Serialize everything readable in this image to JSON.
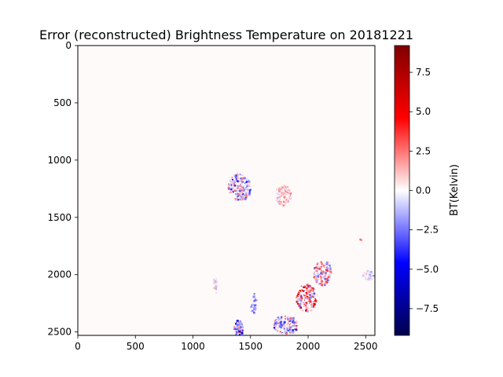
{
  "chart_data": {
    "type": "heatmap",
    "title": "Error (reconstructed) Brightness Temperature on 20181221",
    "xlabel": "",
    "ylabel": "",
    "xlim": [
      0,
      2580
    ],
    "ylim": [
      2530,
      0
    ],
    "x_ticks": [
      0,
      500,
      1000,
      1500,
      2000,
      2500
    ],
    "y_ticks": [
      0,
      500,
      1000,
      1500,
      2000,
      2500
    ],
    "colormap": "seismic",
    "colorbar": {
      "label": "BT(Kelvin)",
      "range": [
        -9.2,
        9.2
      ],
      "ticks": [
        -7.5,
        -5.0,
        -2.5,
        0.0,
        2.5,
        5.0,
        7.5
      ],
      "tick_labels": [
        "−7.5",
        "−5.0",
        "−2.5",
        "0.0",
        "2.5",
        "5.0",
        "7.5"
      ]
    },
    "background_value": 0.0,
    "error_patches": [
      {
        "cx": 1400,
        "cy": 1230,
        "rx": 100,
        "ry": 120,
        "count": 230,
        "vmin": -4.5,
        "vmax": 3.0
      },
      {
        "cx": 1780,
        "cy": 1300,
        "rx": 70,
        "ry": 90,
        "count": 120,
        "vmin": -1.0,
        "vmax": 2.5
      },
      {
        "cx": 2120,
        "cy": 1980,
        "rx": 80,
        "ry": 110,
        "count": 150,
        "vmin": -3.0,
        "vmax": 4.0
      },
      {
        "cx": 1980,
        "cy": 2200,
        "rx": 90,
        "ry": 120,
        "count": 170,
        "vmin": -3.5,
        "vmax": 6.0
      },
      {
        "cx": 1800,
        "cy": 2430,
        "rx": 110,
        "ry": 80,
        "count": 150,
        "vmin": -4.5,
        "vmax": 3.5
      },
      {
        "cx": 1390,
        "cy": 2460,
        "rx": 40,
        "ry": 70,
        "count": 90,
        "vmin": -6.0,
        "vmax": 3.0
      },
      {
        "cx": 1520,
        "cy": 2230,
        "rx": 25,
        "ry": 100,
        "count": 50,
        "vmin": -3.0,
        "vmax": 1.0
      },
      {
        "cx": 1190,
        "cy": 2090,
        "rx": 20,
        "ry": 70,
        "count": 35,
        "vmin": -2.0,
        "vmax": 1.5
      },
      {
        "cx": 2520,
        "cy": 2000,
        "rx": 50,
        "ry": 40,
        "count": 40,
        "vmin": -2.0,
        "vmax": 1.0
      },
      {
        "cx": 2450,
        "cy": 1690,
        "rx": 8,
        "ry": 8,
        "count": 6,
        "vmin": 1.0,
        "vmax": 3.0
      }
    ]
  }
}
